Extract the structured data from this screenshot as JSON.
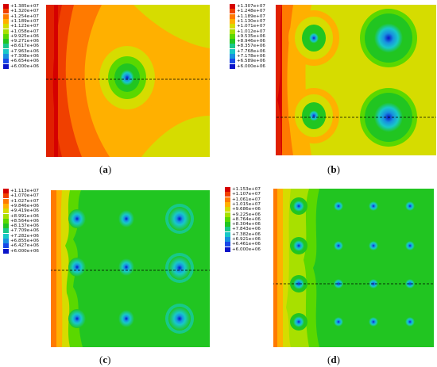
{
  "figure": {
    "panels": [
      {
        "id": "a",
        "caption_letter": "a",
        "legend": [
          "+1.385e+07",
          "+1.320e+07",
          "+1.254e+07",
          "+1.189e+07",
          "+1.123e+07",
          "+1.058e+07",
          "+9.925e+06",
          "+9.271e+06",
          "+8.617e+06",
          "+7.963e+06",
          "+7.308e+06",
          "+6.654e+06",
          "+6.000e+06"
        ]
      },
      {
        "id": "b",
        "caption_letter": "b",
        "legend": [
          "+1.307e+07",
          "+1.248e+07",
          "+1.189e+07",
          "+1.130e+07",
          "+1.071e+07",
          "+1.012e+07",
          "+9.535e+06",
          "+8.946e+06",
          "+8.357e+06",
          "+7.768e+06",
          "+7.178e+06",
          "+6.589e+06",
          "+6.000e+06"
        ]
      },
      {
        "id": "c",
        "caption_letter": "c",
        "legend": [
          "+1.113e+07",
          "+1.070e+07",
          "+1.027e+07",
          "+9.846e+06",
          "+9.419e+06",
          "+8.991e+06",
          "+8.564e+06",
          "+8.137e+06",
          "+7.709e+06",
          "+7.282e+06",
          "+6.855e+06",
          "+6.427e+06",
          "+6.000e+06"
        ]
      },
      {
        "id": "d",
        "caption_letter": "d",
        "legend": [
          "+1.153e+07",
          "+1.107e+07",
          "+1.061e+07",
          "+1.015e+07",
          "+9.686e+06",
          "+9.225e+06",
          "+8.764e+06",
          "+8.304e+06",
          "+7.843e+06",
          "+7.382e+06",
          "+6.921e+06",
          "+6.461e+06",
          "+6.000e+06"
        ]
      }
    ],
    "legend_colors": [
      "#d50000",
      "#f04000",
      "#ff7a00",
      "#ffb000",
      "#d6dc00",
      "#a8e000",
      "#5ad800",
      "#21c521",
      "#18c88a",
      "#18c8c8",
      "#1890e0",
      "#1848e8",
      "#0a14c8"
    ]
  }
}
